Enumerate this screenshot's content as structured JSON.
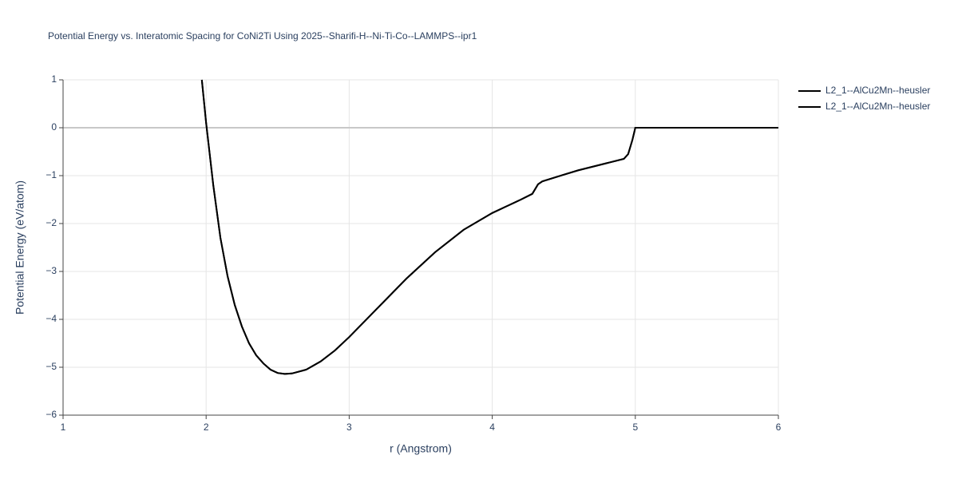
{
  "chart_data": {
    "type": "line",
    "title": "Potential Energy vs. Interatomic Spacing for CoNi2Ti Using 2025--Sharifi-H--Ni-Ti-Co--LAMMPS--ipr1",
    "x_label": "r (Angstrom)",
    "y_label": "Potential Energy (eV/atom)",
    "x": [
      1.97,
      2.0,
      2.05,
      2.1,
      2.15,
      2.2,
      2.25,
      2.3,
      2.35,
      2.4,
      2.45,
      2.5,
      2.55,
      2.6,
      2.7,
      2.8,
      2.9,
      3.0,
      3.2,
      3.4,
      3.6,
      3.8,
      4.0,
      4.2,
      4.28,
      4.32,
      4.35,
      4.5,
      4.6,
      4.8,
      4.92,
      4.95,
      4.98,
      5.0,
      6.0
    ],
    "series": [
      {
        "name": "L2_1--AlCu2Mn--heusler",
        "color": "#000000",
        "values": [
          1.0,
          0.1,
          -1.2,
          -2.3,
          -3.1,
          -3.7,
          -4.15,
          -4.5,
          -4.75,
          -4.92,
          -5.05,
          -5.12,
          -5.14,
          -5.13,
          -5.05,
          -4.88,
          -4.65,
          -4.37,
          -3.76,
          -3.15,
          -2.6,
          -2.13,
          -1.78,
          -1.5,
          -1.38,
          -1.18,
          -1.12,
          -0.98,
          -0.89,
          -0.74,
          -0.65,
          -0.55,
          -0.25,
          0,
          0
        ]
      },
      {
        "name": "L2_1--AlCu2Mn--heusler",
        "color": "#000000",
        "values": [
          1.0,
          0.1,
          -1.2,
          -2.3,
          -3.1,
          -3.7,
          -4.15,
          -4.5,
          -4.75,
          -4.92,
          -5.05,
          -5.12,
          -5.14,
          -5.13,
          -5.05,
          -4.88,
          -4.65,
          -4.37,
          -3.76,
          -3.15,
          -2.6,
          -2.13,
          -1.78,
          -1.5,
          -1.38,
          -1.18,
          -1.12,
          -0.98,
          -0.89,
          -0.74,
          -0.65,
          -0.55,
          -0.25,
          0,
          0
        ]
      }
    ],
    "xlim": [
      1,
      6
    ],
    "xticks": [
      1,
      2,
      3,
      4,
      5,
      6
    ],
    "ylim": [
      -6,
      1
    ],
    "yticks": [
      {
        "value": -6,
        "label": "−6"
      },
      {
        "value": -5,
        "label": "−5"
      },
      {
        "value": -4,
        "label": "−4"
      },
      {
        "value": -3,
        "label": "−3"
      },
      {
        "value": -2,
        "label": "−2"
      },
      {
        "value": -1,
        "label": "−1"
      },
      0,
      1
    ],
    "grid": true
  }
}
